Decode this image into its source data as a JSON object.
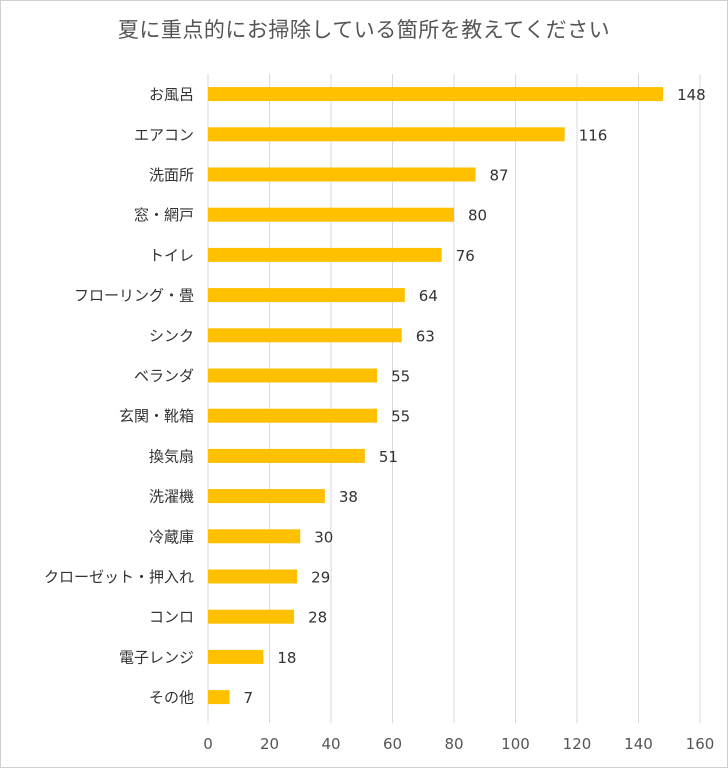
{
  "chart_data": {
    "type": "bar",
    "orientation": "horizontal",
    "title": "夏に重点的にお掃除している箇所を教えてください",
    "categories": [
      "お風呂",
      "エアコン",
      "洗面所",
      "窓・網戸",
      "トイレ",
      "フローリング・畳",
      "シンク",
      "ベランダ",
      "玄関・靴箱",
      "換気扇",
      "洗濯機",
      "冷蔵庫",
      "クローゼット・押入れ",
      "コンロ",
      "電子レンジ",
      "その他"
    ],
    "values": [
      148,
      116,
      87,
      80,
      76,
      64,
      63,
      55,
      55,
      51,
      38,
      30,
      29,
      28,
      18,
      7
    ],
    "xlim": [
      0,
      160
    ],
    "xticks": [
      0,
      20,
      40,
      60,
      80,
      100,
      120,
      140,
      160
    ],
    "grid": "vertical",
    "bar_color": "#FFC000",
    "grid_color": "#d9d9d9",
    "data_labels": true
  }
}
